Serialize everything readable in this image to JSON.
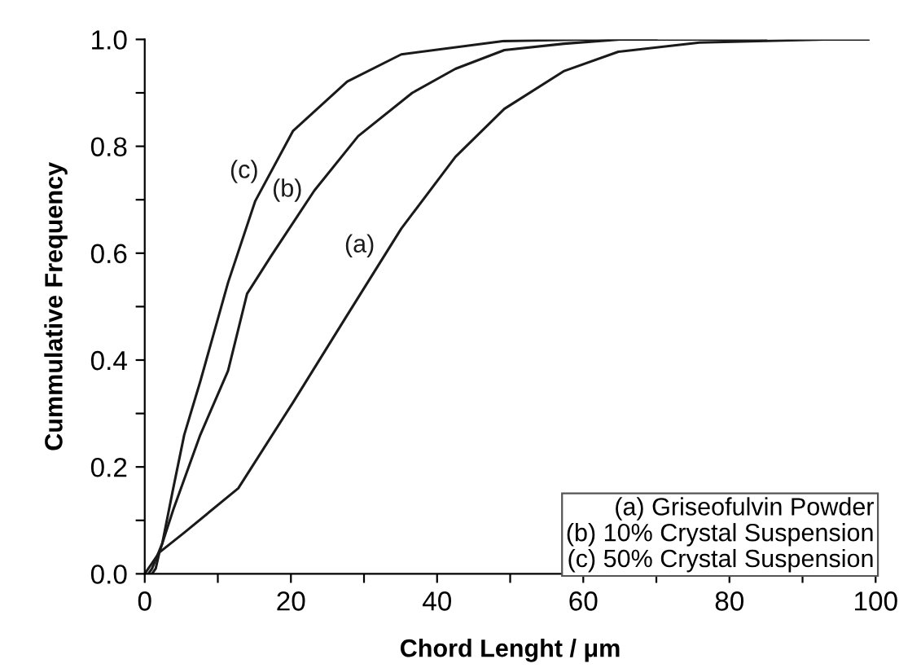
{
  "chart_data": {
    "type": "line",
    "xlabel": "Chord Lenght / μm",
    "ylabel": "Cummulative Frequency",
    "xlim": [
      0,
      100
    ],
    "ylim": [
      0,
      1.0
    ],
    "xticks": [
      0,
      {
        "value": 10,
        "label": null
      },
      20,
      {
        "value": 30,
        "label": null
      },
      40,
      {
        "value": 50,
        "label": null
      },
      60,
      {
        "value": 70,
        "label": null
      },
      80,
      {
        "value": 90,
        "label": null
      },
      100
    ],
    "yticks": [
      {
        "value": 0,
        "label": "0.0"
      },
      {
        "value": 0.1,
        "label": null
      },
      0.2,
      {
        "value": 0.3,
        "label": null
      },
      0.4,
      {
        "value": 0.5,
        "label": null
      },
      0.6,
      {
        "value": 0.7,
        "label": null
      },
      0.8,
      {
        "value": 0.9,
        "label": null
      },
      {
        "value": 1.0,
        "label": "1.0"
      }
    ],
    "grid": false,
    "marker": "none",
    "line_style": "solid",
    "series": [
      {
        "name": "(a)",
        "color": "#1a1a1a",
        "x": [
          0,
          1,
          2,
          5.4,
          12.8,
          20.3,
          27.7,
          35.1,
          42.5,
          49.2,
          57.4,
          64.8,
          75.9,
          93,
          99
        ],
        "values": [
          0,
          0.02,
          0.04,
          0.077,
          0.16,
          0.321,
          0.484,
          0.646,
          0.78,
          0.87,
          0.941,
          0.977,
          0.994,
          1.0,
          1.0
        ]
      },
      {
        "name": "(b)",
        "color": "#1a1a1a",
        "x": [
          1,
          1.5,
          2,
          3.9,
          7.6,
          11.4,
          14.0,
          17.3,
          23.2,
          29.2,
          36.6,
          42.5,
          49.2,
          57.4,
          65,
          70
        ],
        "values": [
          0,
          0.01,
          0.04,
          0.12,
          0.26,
          0.38,
          0.524,
          0.595,
          0.717,
          0.819,
          0.9,
          0.945,
          0.98,
          0.992,
          1.0,
          1.0
        ]
      },
      {
        "name": "(c)",
        "color": "#1a1a1a",
        "x": [
          0.5,
          1,
          2.4,
          3.9,
          5.4,
          7.6,
          11.4,
          15.1,
          20.3,
          27.7,
          35.1,
          49.2,
          60,
          85
        ],
        "values": [
          0,
          0.01,
          0.057,
          0.16,
          0.26,
          0.36,
          0.545,
          0.697,
          0.829,
          0.921,
          0.972,
          0.997,
          1.0,
          1.0
        ]
      }
    ],
    "annotations": [
      "(a) Griseofulvin Powder",
      "(b) 10% Crystal Suspension",
      "(c) 50% Crystal Suspension"
    ]
  }
}
